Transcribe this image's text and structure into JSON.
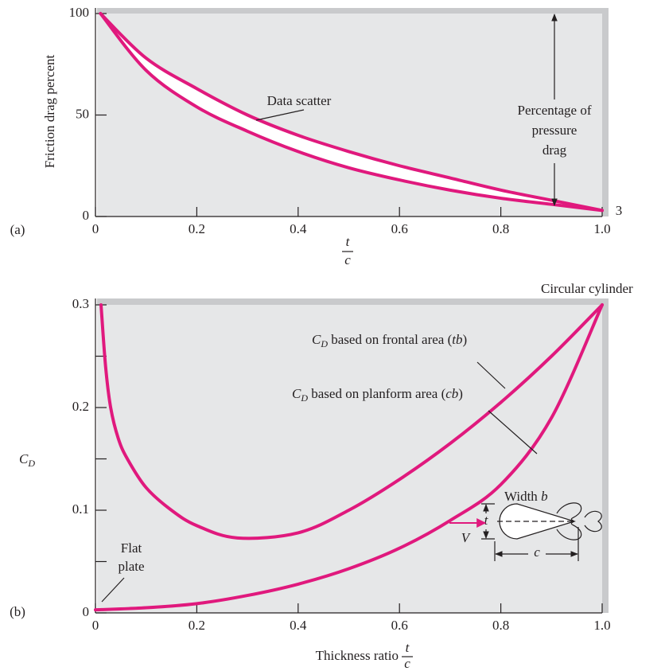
{
  "chart_data": [
    {
      "type": "line",
      "panel_label": "(a)",
      "ylabel": "Friction drag percent",
      "xlabel": {
        "numerator": "t",
        "denominator": "c"
      },
      "series": [
        {
          "color": "#e0197d",
          "x": [
            0.01,
            0.1,
            0.2,
            0.3,
            0.4,
            0.5,
            0.6,
            0.7,
            0.8,
            0.9,
            1.0
          ],
          "values": [
            100,
            78,
            63,
            50,
            40,
            32,
            25,
            19,
            13,
            8,
            3
          ]
        },
        {
          "color": "#e0197d",
          "x": [
            0.01,
            0.1,
            0.2,
            0.3,
            0.4,
            0.5,
            0.6,
            0.7,
            0.8,
            0.9,
            1.0
          ],
          "values": [
            100,
            72,
            54,
            42,
            32,
            24,
            18,
            13,
            9,
            6,
            3
          ]
        }
      ],
      "band_fill": "#ffffff",
      "xlim": [
        0,
        1
      ],
      "ylim": [
        0,
        100
      ],
      "xticks": [
        0,
        0.2,
        0.4,
        0.6,
        0.8,
        {
          "value": 1,
          "label": "1.0"
        }
      ],
      "yticks": [
        0,
        50,
        100
      ],
      "annotations": {
        "data_scatter": "Data scatter",
        "pressure_drag": [
          "Percentage of",
          "pressure",
          "drag"
        ],
        "end_label": 3
      }
    },
    {
      "type": "line",
      "panel_label": "(b)",
      "ylabel": {
        "symbol": "C",
        "subscript": "D"
      },
      "xlabel": {
        "text": "Thickness ratio",
        "numerator": "t",
        "denominator": "c"
      },
      "series": [
        {
          "color": "#e0197d",
          "x": [
            0.011,
            0.02,
            0.03,
            0.045,
            0.063,
            0.1,
            0.15,
            0.2,
            0.28,
            0.4,
            0.5,
            0.6,
            0.7,
            0.8,
            0.9,
            1.0
          ],
          "values": [
            0.3,
            0.24,
            0.2,
            0.17,
            0.15,
            0.122,
            0.1,
            0.085,
            0.073,
            0.078,
            0.1,
            0.13,
            0.165,
            0.205,
            0.25,
            0.3
          ]
        },
        {
          "color": "#e0197d",
          "x": [
            0,
            0.1,
            0.2,
            0.3,
            0.4,
            0.5,
            0.6,
            0.7,
            0.8,
            0.9,
            1.0
          ],
          "values": [
            0.003,
            0.005,
            0.009,
            0.017,
            0.028,
            0.043,
            0.063,
            0.09,
            0.125,
            0.19,
            0.3
          ]
        }
      ],
      "xlim": [
        0,
        1
      ],
      "ylim": [
        0,
        0.3
      ],
      "xticks": [
        0,
        0.2,
        0.4,
        0.6,
        0.8,
        {
          "value": 1,
          "label": "1.0"
        }
      ],
      "yticks": [
        0,
        0.1,
        0.2,
        0.3
      ],
      "yminorticks": [
        0.05,
        0.15,
        0.25
      ],
      "annotations": {
        "cylinder": "Circular cylinder",
        "frontal": [
          "C",
          "D",
          " based on frontal area (",
          "tb",
          ")"
        ],
        "planform": [
          "C",
          "D",
          " based on planform area (",
          "cb",
          ")"
        ],
        "flat_plate": [
          "Flat",
          "plate"
        ],
        "width": [
          "Width ",
          "b"
        ],
        "velocity": "V",
        "thickness": "t",
        "chord": "c"
      }
    }
  ]
}
